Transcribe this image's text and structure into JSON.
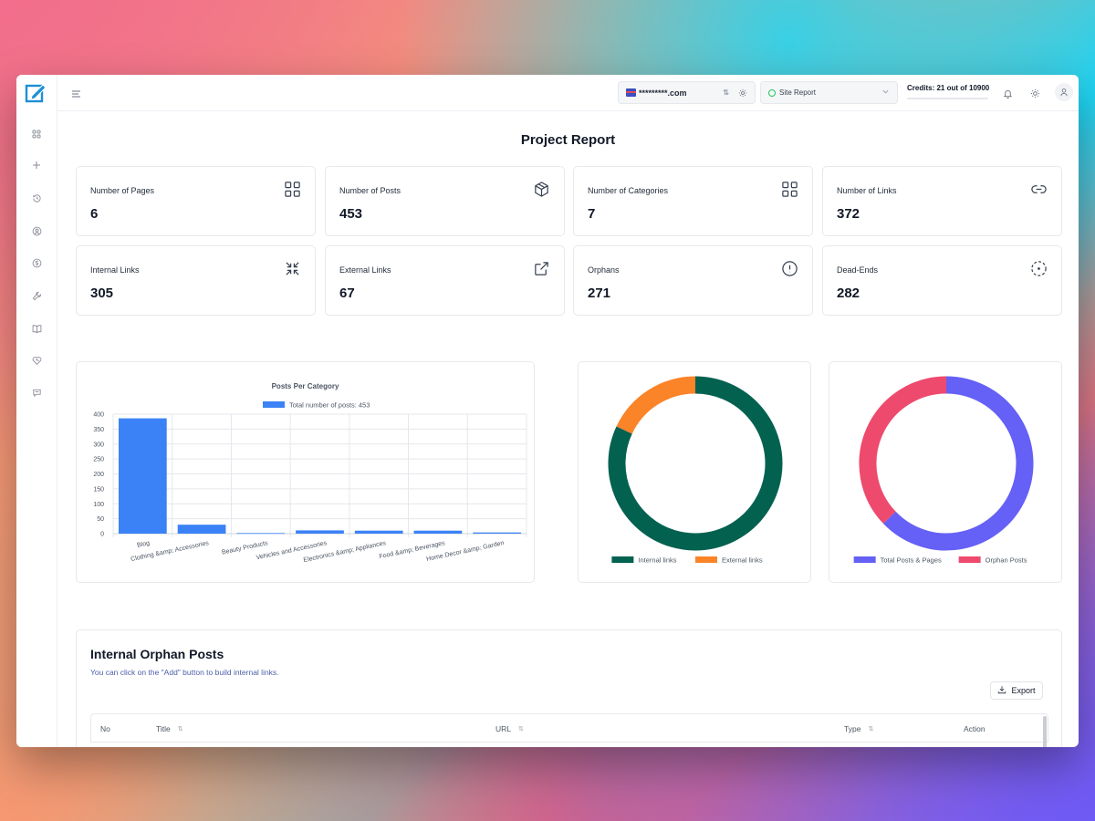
{
  "topbar": {
    "domain": "*********.com",
    "report": "Site Report",
    "credits": "Credits: 21 out of 10900"
  },
  "page_title": "Project Report",
  "stats": [
    {
      "label": "Number of Pages",
      "value": "6",
      "icon": "grid-icon"
    },
    {
      "label": "Number of Posts",
      "value": "453",
      "icon": "cube-icon"
    },
    {
      "label": "Number of Categories",
      "value": "7",
      "icon": "grid-icon"
    },
    {
      "label": "Number of Links",
      "value": "372",
      "icon": "link-icon"
    },
    {
      "label": "Internal Links",
      "value": "305",
      "icon": "shrink-icon"
    },
    {
      "label": "External Links",
      "value": "67",
      "icon": "external-link-icon"
    },
    {
      "label": "Orphans",
      "value": "271",
      "icon": "alert-circle-icon"
    },
    {
      "label": "Dead-Ends",
      "value": "282",
      "icon": "dashed-circle-icon"
    }
  ],
  "chart_data": [
    {
      "type": "bar",
      "title": "Posts Per Category",
      "categories": [
        "Blog",
        "Clothing &amp; Accessories",
        "Beauty Products",
        "Vehicles and Accessories",
        "Electronics &amp; Appliances",
        "Food &amp; Beverages",
        "Home Decor &amp; Garden"
      ],
      "series": [
        {
          "name": "Total number of posts: 453",
          "values": [
            386,
            30,
            2,
            11,
            10,
            10,
            4
          ],
          "color": "#3b82f6"
        }
      ],
      "ylim": [
        0,
        400
      ],
      "yticks": [
        0,
        50,
        100,
        150,
        200,
        250,
        300,
        350,
        400
      ],
      "legend": "top"
    },
    {
      "type": "pie",
      "labels": [
        "Internal links",
        "External links"
      ],
      "values": [
        305,
        67
      ],
      "colors": [
        "#036150",
        "#fb8328"
      ],
      "legend": "bottom"
    },
    {
      "type": "pie",
      "labels": [
        "Total  Posts & Pages",
        "Orphan  Posts"
      ],
      "values": [
        459,
        271
      ],
      "colors": [
        "#6560f6",
        "#ee4a6d"
      ],
      "legend": "bottom"
    }
  ],
  "table": {
    "title": "Internal Orphan Posts",
    "subtitle": "You can click on the \"Add\" button to build internal links.",
    "export_label": "Export",
    "columns": [
      "No",
      "Title",
      "URL",
      "Type",
      "Action"
    ]
  }
}
